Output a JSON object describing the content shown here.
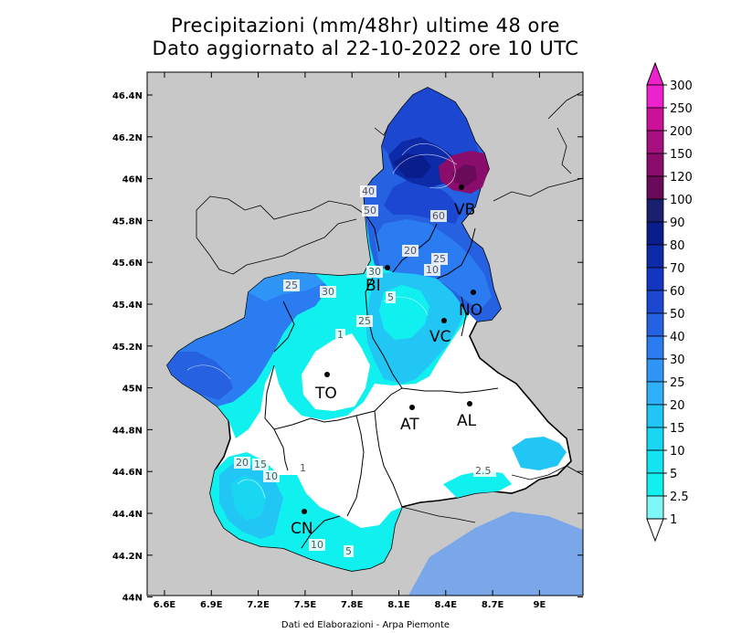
{
  "title_line1": "Precipitazioni (mm/48hr) ultime 48 ore",
  "title_line2": "Dato aggiornato al 22-10-2022 ore 10 UTC",
  "footer": "Dati ed Elaborazioni - Arpa Piemonte",
  "lat_ticks": [
    "46.4N",
    "46.2N",
    "46N",
    "45.8N",
    "45.6N",
    "45.4N",
    "45.2N",
    "45N",
    "44.8N",
    "44.6N",
    "44.4N",
    "44.2N",
    "44N"
  ],
  "lon_ticks": [
    "6.6E",
    "6.9E",
    "7.2E",
    "7.5E",
    "7.8E",
    "8.1E",
    "8.4E",
    "8.7E",
    "9E"
  ],
  "legend": {
    "levels": [
      "300",
      "250",
      "200",
      "150",
      "120",
      "100",
      "90",
      "80",
      "70",
      "60",
      "50",
      "40",
      "30",
      "25",
      "20",
      "15",
      "10",
      "5",
      "2.5",
      "1"
    ],
    "colors": [
      "#ee22cc",
      "#cc1199",
      "#a6107f",
      "#8a0c6b",
      "#6a0a5a",
      "#1a1f6e",
      "#0a1d8c",
      "#0d2aa8",
      "#1236bf",
      "#1b47d1",
      "#2561e0",
      "#2b7cf0",
      "#2f95f7",
      "#2fb0f8",
      "#22c6f5",
      "#19d7f3",
      "#13e4f1",
      "#10f0ef",
      "#7ff7f7",
      "#ffffff"
    ]
  },
  "cities": [
    {
      "code": "VB"
    },
    {
      "code": "BI"
    },
    {
      "code": "NO"
    },
    {
      "code": "VC"
    },
    {
      "code": "TO"
    },
    {
      "code": "AT"
    },
    {
      "code": "AL"
    },
    {
      "code": "CN"
    }
  ],
  "contour_labels": [
    "60",
    "40",
    "50",
    "30",
    "20",
    "25",
    "10",
    "25",
    "30",
    "5",
    "25",
    "1",
    "20",
    "15",
    "10",
    "1",
    "10",
    "5",
    "2.5"
  ],
  "colors": {
    "land_outside": "#c8c8c8",
    "sea": "#7aa7ea",
    "border": "#000000"
  }
}
